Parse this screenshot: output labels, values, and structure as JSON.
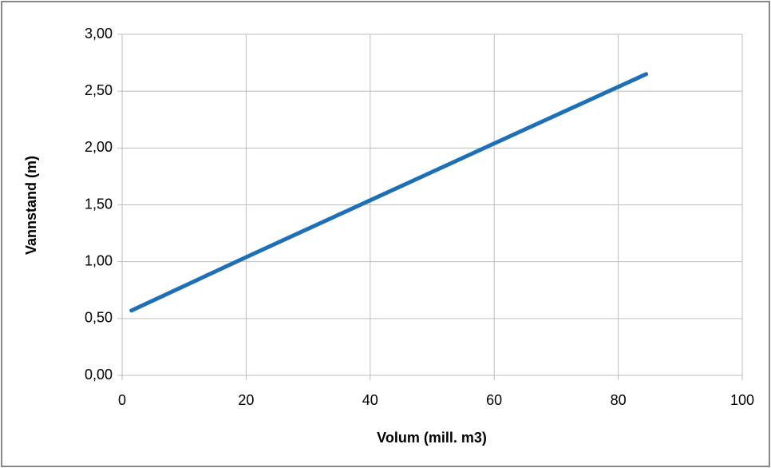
{
  "chart_data": {
    "type": "line",
    "x_label": "Volum (mill. m3)",
    "y_label": "Vannstand (m)",
    "x": [
      1.5,
      20,
      40,
      60,
      84.5
    ],
    "values": [
      0.57,
      1.04,
      1.54,
      2.04,
      2.65
    ],
    "color": "#1f6fb5",
    "xlim": [
      0,
      100
    ],
    "xticks": [
      0,
      20,
      40,
      60,
      80,
      100
    ],
    "ylim": [
      0,
      3
    ],
    "yticks": [
      {
        "value": 0,
        "label": "0,00"
      },
      {
        "value": 0.5,
        "label": "0,50"
      },
      {
        "value": 1,
        "label": "1,00"
      },
      {
        "value": 1.5,
        "label": "1,50"
      },
      {
        "value": 2,
        "label": "2,00"
      },
      {
        "value": 2.5,
        "label": "2,50"
      },
      {
        "value": 3,
        "label": "3,00"
      }
    ],
    "grid": true
  }
}
